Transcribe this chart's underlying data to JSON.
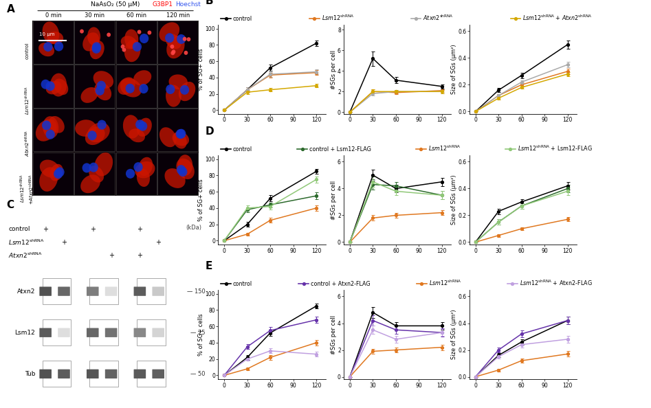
{
  "xvals": [
    0,
    30,
    60,
    90,
    120
  ],
  "panel_B": {
    "pct_SG": {
      "control": [
        0,
        25,
        52,
        null,
        82
      ],
      "Lsm12": [
        0,
        25,
        43,
        null,
        46
      ],
      "Atxn2": [
        0,
        25,
        44,
        null,
        47
      ],
      "Lsm12Atxn2": [
        0,
        22,
        25,
        null,
        30
      ]
    },
    "num_SG": {
      "control": [
        0,
        5.2,
        3.1,
        null,
        2.5
      ],
      "Lsm12": [
        0,
        2.0,
        1.9,
        null,
        2.1
      ],
      "Atxn2": [
        0,
        1.8,
        2.0,
        null,
        2.0
      ],
      "Lsm12Atxn2": [
        0,
        2.0,
        2.0,
        null,
        2.0
      ]
    },
    "size_SG": {
      "control": [
        0,
        0.16,
        0.27,
        null,
        0.5
      ],
      "Lsm12": [
        0,
        0.12,
        0.2,
        null,
        0.3
      ],
      "Atxn2": [
        0,
        0.12,
        0.22,
        null,
        0.35
      ],
      "Lsm12Atxn2": [
        0,
        0.1,
        0.18,
        null,
        0.28
      ]
    },
    "pct_SG_err": {
      "control": [
        0,
        3,
        4,
        null,
        3
      ],
      "Lsm12": [
        0,
        3,
        3,
        null,
        3
      ],
      "Atxn2": [
        0,
        3,
        3,
        null,
        3
      ],
      "Lsm12Atxn2": [
        0,
        2,
        2,
        null,
        2
      ]
    },
    "num_SG_err": {
      "control": [
        0,
        0.7,
        0.3,
        null,
        0.2
      ],
      "Lsm12": [
        0,
        0.2,
        0.15,
        null,
        0.15
      ],
      "Atxn2": [
        0,
        0.2,
        0.15,
        null,
        0.15
      ],
      "Lsm12Atxn2": [
        0,
        0.2,
        0.15,
        null,
        0.15
      ]
    },
    "size_SG_err": {
      "control": [
        0,
        0.015,
        0.02,
        null,
        0.03
      ],
      "Lsm12": [
        0,
        0.01,
        0.015,
        null,
        0.02
      ],
      "Atxn2": [
        0,
        0.01,
        0.015,
        null,
        0.02
      ],
      "Lsm12Atxn2": [
        0,
        0.01,
        0.01,
        null,
        0.015
      ]
    }
  },
  "panel_D": {
    "pct_SG": {
      "control": [
        0,
        20,
        52,
        null,
        85
      ],
      "ctrl_Lsm12FLAG": [
        0,
        38,
        44,
        null,
        55
      ],
      "Lsm12shRNA": [
        0,
        8,
        25,
        null,
        40
      ],
      "Lsm12shRNA_FLAG": [
        0,
        40,
        42,
        null,
        75
      ]
    },
    "num_SG": {
      "control": [
        0,
        5.0,
        4.0,
        null,
        4.5
      ],
      "ctrl_Lsm12FLAG": [
        0,
        4.3,
        4.2,
        null,
        3.5
      ],
      "Lsm12shRNA": [
        0,
        1.8,
        2.0,
        null,
        2.2
      ],
      "Lsm12shRNA_FLAG": [
        0,
        4.5,
        3.8,
        null,
        3.5
      ]
    },
    "size_SG": {
      "control": [
        0,
        0.23,
        0.3,
        null,
        0.42
      ],
      "ctrl_Lsm12FLAG": [
        0,
        0.15,
        0.27,
        null,
        0.4
      ],
      "Lsm12shRNA": [
        0,
        0.05,
        0.1,
        null,
        0.17
      ],
      "Lsm12shRNA_FLAG": [
        0,
        0.15,
        0.27,
        null,
        0.38
      ]
    },
    "pct_SG_err": {
      "control": [
        0,
        3,
        4,
        null,
        3
      ],
      "ctrl_Lsm12FLAG": [
        0,
        3,
        3,
        null,
        4
      ],
      "Lsm12shRNA": [
        0,
        2,
        3,
        null,
        3
      ],
      "Lsm12shRNA_FLAG": [
        0,
        3,
        4,
        null,
        4
      ]
    },
    "num_SG_err": {
      "control": [
        0,
        0.4,
        0.3,
        null,
        0.3
      ],
      "ctrl_Lsm12FLAG": [
        0,
        0.4,
        0.3,
        null,
        0.3
      ],
      "Lsm12shRNA": [
        0,
        0.2,
        0.2,
        null,
        0.2
      ],
      "Lsm12shRNA_FLAG": [
        0,
        0.4,
        0.3,
        null,
        0.3
      ]
    },
    "size_SG_err": {
      "control": [
        0,
        0.02,
        0.02,
        null,
        0.03
      ],
      "ctrl_Lsm12FLAG": [
        0,
        0.02,
        0.02,
        null,
        0.03
      ],
      "Lsm12shRNA": [
        0,
        0.01,
        0.01,
        null,
        0.015
      ],
      "Lsm12shRNA_FLAG": [
        0,
        0.02,
        0.02,
        null,
        0.03
      ]
    }
  },
  "panel_E": {
    "pct_SG": {
      "control": [
        0,
        22,
        52,
        null,
        85
      ],
      "ctrl_Atxn2FLAG": [
        0,
        35,
        55,
        null,
        68
      ],
      "Lsm12shRNA": [
        0,
        8,
        22,
        null,
        40
      ],
      "Lsm12shRNA_Atxn2FLAG": [
        0,
        20,
        30,
        null,
        26
      ]
    },
    "num_SG": {
      "control": [
        0,
        4.8,
        3.8,
        null,
        3.8
      ],
      "ctrl_Atxn2FLAG": [
        0,
        4.2,
        3.5,
        null,
        3.3
      ],
      "Lsm12shRNA": [
        0,
        1.9,
        2.0,
        null,
        2.2
      ],
      "Lsm12shRNA_Atxn2FLAG": [
        0,
        3.5,
        2.8,
        null,
        3.3
      ]
    },
    "size_SG": {
      "control": [
        0,
        0.16,
        0.26,
        null,
        0.42
      ],
      "ctrl_Atxn2FLAG": [
        0,
        0.2,
        0.32,
        null,
        0.42
      ],
      "Lsm12shRNA": [
        0,
        0.05,
        0.12,
        null,
        0.17
      ],
      "Lsm12shRNA_Atxn2FLAG": [
        0,
        0.15,
        0.24,
        null,
        0.28
      ]
    },
    "pct_SG_err": {
      "control": [
        0,
        3,
        4,
        null,
        3
      ],
      "ctrl_Atxn2FLAG": [
        0,
        3,
        4,
        null,
        4
      ],
      "Lsm12shRNA": [
        0,
        2,
        3,
        null,
        3
      ],
      "Lsm12shRNA_Atxn2FLAG": [
        0,
        2,
        3,
        null,
        3
      ]
    },
    "num_SG_err": {
      "control": [
        0,
        0.4,
        0.3,
        null,
        0.3
      ],
      "ctrl_Atxn2FLAG": [
        0,
        0.4,
        0.3,
        null,
        0.3
      ],
      "Lsm12shRNA": [
        0,
        0.2,
        0.2,
        null,
        0.2
      ],
      "Lsm12shRNA_Atxn2FLAG": [
        0,
        0.3,
        0.25,
        null,
        0.25
      ]
    },
    "size_SG_err": {
      "control": [
        0,
        0.015,
        0.02,
        null,
        0.03
      ],
      "ctrl_Atxn2FLAG": [
        0,
        0.02,
        0.025,
        null,
        0.03
      ],
      "Lsm12shRNA": [
        0,
        0.01,
        0.015,
        null,
        0.02
      ],
      "Lsm12shRNA_Atxn2FLAG": [
        0,
        0.015,
        0.02,
        null,
        0.025
      ]
    }
  },
  "colors": {
    "B": {
      "control": "#000000",
      "Lsm12": "#E07820",
      "Atxn2": "#aaaaaa",
      "Lsm12Atxn2": "#D4A800"
    },
    "D": {
      "control": "#000000",
      "ctrl_Lsm12FLAG": "#2d6a2d",
      "Lsm12shRNA": "#E07820",
      "Lsm12shRNA_FLAG": "#90c878"
    },
    "E": {
      "control": "#000000",
      "ctrl_Atxn2FLAG": "#6633aa",
      "Lsm12shRNA": "#E07820",
      "Lsm12shRNA_Atxn2FLAG": "#c0a0e0"
    }
  },
  "background_color": "#ffffff"
}
